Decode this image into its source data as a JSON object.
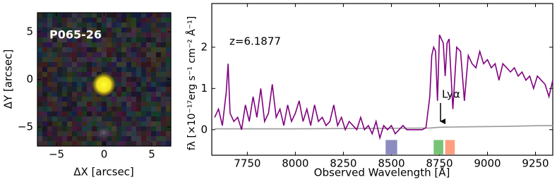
{
  "chart_data": [
    {
      "type": "image",
      "label": "P065-26",
      "x_label": "ΔX [arcsec]",
      "y_label": "ΔY [arcsec]",
      "xlim": [
        -7,
        7
      ],
      "ylim": [
        -7,
        7
      ],
      "xticks": [
        {
          "value": -5,
          "label": "−5"
        },
        0,
        5
      ],
      "yticks": [
        {
          "value": -5,
          "label": "−5"
        },
        0,
        5
      ]
    },
    {
      "type": "line",
      "annotation": "z=6.1877",
      "line_label": "Lyα",
      "x_label": "Observed Wavelength [Å]",
      "y_label": "fλ [×10⁻¹⁷erg s⁻¹ cm⁻² Å⁻¹]",
      "xlim": [
        7565,
        9340
      ],
      "ylim": [
        -0.62,
        3.06
      ],
      "xticks": [
        7750,
        8000,
        8250,
        8500,
        8750,
        9000,
        9250
      ],
      "yticks": [
        0,
        1,
        2
      ],
      "series": [
        {
          "color": "#800080",
          "x": [
            7580,
            7600,
            7620,
            7640,
            7650,
            7660,
            7680,
            7700,
            7720,
            7740,
            7760,
            7780,
            7800,
            7820,
            7840,
            7860,
            7880,
            7900,
            7920,
            7940,
            7960,
            7980,
            8000,
            8020,
            8040,
            8060,
            8080,
            8100,
            8120,
            8140,
            8160,
            8180,
            8200,
            8220,
            8240,
            8260,
            8280,
            8300,
            8320,
            8340,
            8360,
            8380,
            8400,
            8420,
            8440,
            8460,
            8480,
            8500,
            8520,
            8540,
            8560,
            8580,
            8600,
            8620,
            8640,
            8660,
            8680,
            8700,
            8710,
            8720,
            8730,
            8740,
            8750,
            8760,
            8770,
            8780,
            8790,
            8800,
            8820,
            8840,
            8860,
            8880,
            8900,
            8920,
            8940,
            8960,
            8980,
            9000,
            9020,
            9040,
            9060,
            9080,
            9100,
            9120,
            9140,
            9160,
            9180,
            9200,
            9220,
            9240,
            9260,
            9280,
            9300,
            9320,
            9340
          ],
          "values": [
            0.3,
            0.5,
            0.1,
            0.9,
            1.6,
            0.4,
            0.2,
            0.3,
            0.0,
            0.6,
            0.2,
            0.8,
            0.3,
            1.0,
            0.2,
            0.4,
            1.1,
            0.3,
            0.5,
            0.1,
            0.6,
            0.2,
            0.4,
            0.7,
            0.2,
            0.5,
            0.1,
            0.6,
            0.2,
            0.3,
            0.1,
            0.2,
            0.6,
            0.1,
            0.3,
            0.0,
            0.2,
            0.1,
            0.0,
            0.3,
            0.0,
            0.1,
            -0.1,
            0.2,
            -0.2,
            0.1,
            0.0,
            0.1,
            -0.1,
            0.0,
            0.1,
            0.0,
            0.0,
            0.0,
            0.0,
            0.0,
            0.05,
            0.8,
            1.8,
            2.0,
            1.9,
            0.7,
            2.3,
            2.2,
            2.1,
            1.3,
            2.1,
            2.2,
            0.5,
            2.0,
            1.9,
            0.7,
            1.8,
            1.6,
            1.5,
            1.9,
            1.6,
            1.7,
            1.5,
            1.6,
            1.2,
            1.6,
            1.5,
            1.4,
            1.5,
            1.3,
            1.4,
            1.2,
            1.3,
            1.0,
            1.3,
            1.2,
            1.1,
            0.8,
            1.2
          ]
        },
        {
          "color": "#999999",
          "x": [
            7580,
            8000,
            8400,
            8700,
            8750,
            8900,
            9100,
            9300,
            9340
          ],
          "values": [
            0.02,
            0.02,
            0.03,
            0.04,
            0.06,
            0.07,
            0.08,
            0.1,
            0.1
          ]
        }
      ],
      "filters": [
        {
          "xmin": 8470,
          "xmax": 8530,
          "color": "#8c8cc0"
        },
        {
          "xmin": 8720,
          "xmax": 8770,
          "color": "#77c477"
        },
        {
          "xmin": 8780,
          "xmax": 8830,
          "color": "#ff9f80"
        }
      ]
    }
  ]
}
